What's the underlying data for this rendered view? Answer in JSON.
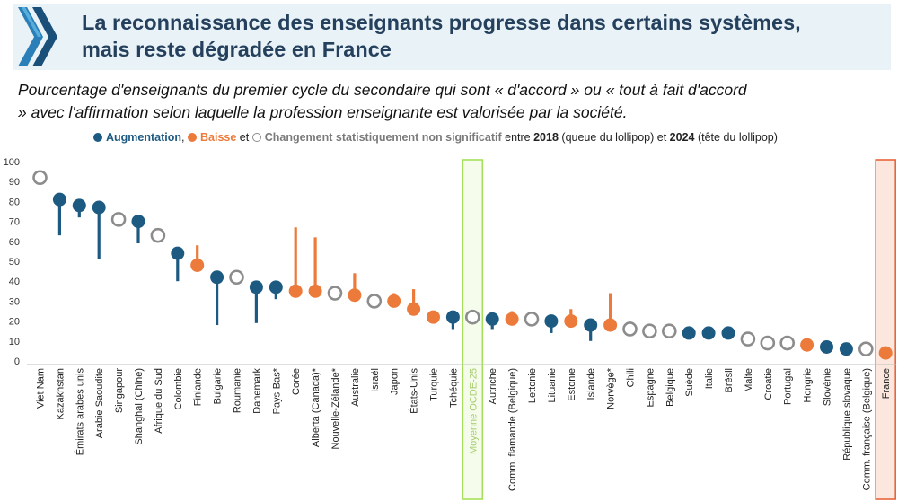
{
  "header": {
    "title_line1": "La reconnaissance des enseignants progresse dans certains systèmes,",
    "title_line2": "mais reste dégradée en France"
  },
  "subtitle_line1": "Pourcentage d'enseignants du premier cycle du secondaire qui sont « d'accord » ou « tout à fait d'accord",
  "subtitle_line2": "» avec l'affirmation selon laquelle la profession enseignante est valorisée par la société.",
  "legend": {
    "increase": "Augmentation",
    "sep1": ",",
    "decrease": "Baisse",
    "and": "et",
    "not_significant": "Changement statistiquement non significatif",
    "between": "entre",
    "year_2018": "2018",
    "tail": "(queue du lollipop)",
    "and2": "et",
    "year_2024": "2024",
    "head": "(tête du lollipop)"
  },
  "colors": {
    "increase": "#1d5a82",
    "decrease": "#ec7a3a",
    "not_significant": "#8c8c8c",
    "oecd_highlight": "#a6e05a",
    "france_highlight": "#e8643c"
  },
  "chart_data": {
    "type": "lollipop",
    "ylim": [
      0,
      100
    ],
    "yticks": [
      0,
      10,
      20,
      30,
      40,
      50,
      60,
      70,
      80,
      90,
      100
    ],
    "grid": false,
    "legend_position": "top",
    "countries": [
      {
        "name": "Viet Nam",
        "v2018": null,
        "v2024": 92,
        "status": "ns"
      },
      {
        "name": "Kazakhstan",
        "v2018": 63,
        "v2024": 81,
        "status": "up"
      },
      {
        "name": "Émirats arabes unis",
        "v2018": 72,
        "v2024": 78,
        "status": "up"
      },
      {
        "name": "Arabie Saoudite",
        "v2018": 51,
        "v2024": 77,
        "status": "up"
      },
      {
        "name": "Singapour",
        "v2018": null,
        "v2024": 71,
        "status": "ns"
      },
      {
        "name": "Shanghai (Chine)",
        "v2018": 59,
        "v2024": 70,
        "status": "up"
      },
      {
        "name": "Afrique du Sud",
        "v2018": null,
        "v2024": 63,
        "status": "ns"
      },
      {
        "name": "Colombie",
        "v2018": 40,
        "v2024": 54,
        "status": "up"
      },
      {
        "name": "Finlande",
        "v2018": 58,
        "v2024": 48,
        "status": "down"
      },
      {
        "name": "Bulgarie",
        "v2018": 18,
        "v2024": 42,
        "status": "up"
      },
      {
        "name": "Roumanie",
        "v2018": null,
        "v2024": 42,
        "status": "ns"
      },
      {
        "name": "Danemark",
        "v2018": 19,
        "v2024": 37,
        "status": "up"
      },
      {
        "name": "Pays-Bas*",
        "v2018": 31,
        "v2024": 37,
        "status": "up"
      },
      {
        "name": "Corée",
        "v2018": 67,
        "v2024": 35,
        "status": "down"
      },
      {
        "name": "Alberta (Canada)*",
        "v2018": 62,
        "v2024": 35,
        "status": "down"
      },
      {
        "name": "Nouvelle-Zélande*",
        "v2018": null,
        "v2024": 34,
        "status": "ns"
      },
      {
        "name": "Australie",
        "v2018": 44,
        "v2024": 33,
        "status": "down"
      },
      {
        "name": "Israël",
        "v2018": null,
        "v2024": 30,
        "status": "ns"
      },
      {
        "name": "Japon",
        "v2018": 34,
        "v2024": 30,
        "status": "down"
      },
      {
        "name": "États-Unis",
        "v2018": 36,
        "v2024": 26,
        "status": "down"
      },
      {
        "name": "Turquie",
        "v2018": null,
        "v2024": 22,
        "status": "down"
      },
      {
        "name": "Tchéquie",
        "v2018": 16,
        "v2024": 22,
        "status": "up"
      },
      {
        "name": "Moyenne OCDE-25",
        "v2018": null,
        "v2024": 22,
        "status": "ns"
      },
      {
        "name": "Autriche",
        "v2018": 16,
        "v2024": 21,
        "status": "up"
      },
      {
        "name": "Comm. flamande (Belgique)",
        "v2018": 25,
        "v2024": 21,
        "status": "down"
      },
      {
        "name": "Lettonie",
        "v2018": null,
        "v2024": 21,
        "status": "ns"
      },
      {
        "name": "Lituanie",
        "v2018": 14,
        "v2024": 20,
        "status": "up"
      },
      {
        "name": "Estonie",
        "v2018": 26,
        "v2024": 20,
        "status": "down"
      },
      {
        "name": "Islande",
        "v2018": 10,
        "v2024": 18,
        "status": "up"
      },
      {
        "name": "Norvège*",
        "v2018": 34,
        "v2024": 18,
        "status": "down"
      },
      {
        "name": "Chili",
        "v2018": null,
        "v2024": 16,
        "status": "ns"
      },
      {
        "name": "Espagne",
        "v2018": null,
        "v2024": 15,
        "status": "ns"
      },
      {
        "name": "Belgique",
        "v2018": null,
        "v2024": 15,
        "status": "ns"
      },
      {
        "name": "Suède",
        "v2018": 12,
        "v2024": 14,
        "status": "up"
      },
      {
        "name": "Italie",
        "v2018": null,
        "v2024": 14,
        "status": "up"
      },
      {
        "name": "Brésil",
        "v2018": null,
        "v2024": 14,
        "status": "up"
      },
      {
        "name": "Malte",
        "v2018": null,
        "v2024": 11,
        "status": "ns"
      },
      {
        "name": "Croatie",
        "v2018": null,
        "v2024": 9,
        "status": "ns"
      },
      {
        "name": "Portugal",
        "v2018": null,
        "v2024": 9,
        "status": "ns"
      },
      {
        "name": "Hongrie",
        "v2018": null,
        "v2024": 8,
        "status": "down"
      },
      {
        "name": "Slovénie",
        "v2018": null,
        "v2024": 7,
        "status": "up"
      },
      {
        "name": "République slovaque",
        "v2018": null,
        "v2024": 6,
        "status": "up"
      },
      {
        "name": "Comm. française (Belgique)",
        "v2018": null,
        "v2024": 6,
        "status": "ns"
      },
      {
        "name": "France",
        "v2018": null,
        "v2024": 4,
        "status": "down"
      }
    ],
    "highlighted": [
      "Moyenne OCDE-25",
      "France"
    ]
  }
}
